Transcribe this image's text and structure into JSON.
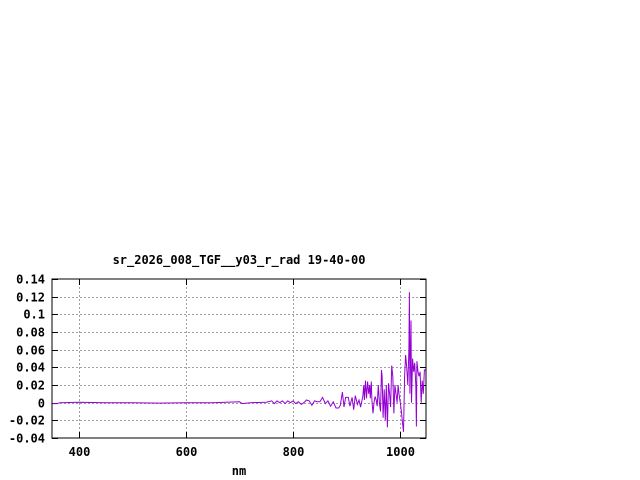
{
  "chart_data": {
    "type": "line",
    "title": "sr_2026_008_TGF__y03_r_rad 19-40-00",
    "xlabel": "nm",
    "ylabel": "",
    "xlim": [
      350,
      1048
    ],
    "ylim": [
      -0.04,
      0.14
    ],
    "xticks": [
      400,
      600,
      800,
      1000
    ],
    "xtick_labels": [
      "400",
      "600",
      "800",
      "1000"
    ],
    "yticks": [
      -0.04,
      -0.02,
      0,
      0.02,
      0.04,
      0.06,
      0.08,
      0.1,
      0.12,
      0.14
    ],
    "ytick_labels": [
      "-0.04",
      "-0.02",
      "0",
      "0.02",
      "0.04",
      "0.06",
      "0.08",
      "0.1",
      "0.12",
      "0.14"
    ],
    "grid": true,
    "line_color": "#9400d3",
    "series": [
      {
        "x": [
          350,
          360,
          365,
          400,
          450,
          500,
          550,
          600,
          650,
          700,
          705,
          720,
          750,
          760,
          765,
          770,
          775,
          780,
          785,
          790,
          795,
          800,
          805,
          810,
          815,
          820,
          825,
          830,
          835,
          840,
          845,
          850,
          855,
          860,
          865,
          870,
          875,
          880,
          885,
          888,
          892,
          895,
          898,
          903,
          906,
          910,
          913,
          916,
          920,
          923,
          926,
          930,
          932,
          933,
          935,
          937,
          939,
          941,
          943,
          944,
          946,
          947,
          949,
          951,
          953,
          955,
          957,
          959,
          961,
          963,
          965,
          966,
          968,
          970,
          972,
          974,
          976,
          978,
          980,
          982,
          984,
          986,
          988,
          990,
          992,
          994,
          996,
          998,
          1000,
          1002,
          1004,
          1006,
          1008,
          1010,
          1012,
          1014,
          1016,
          1017,
          1018,
          1020,
          1021,
          1023,
          1025,
          1027,
          1029,
          1030,
          1031,
          1033,
          1035,
          1037,
          1039,
          1041,
          1043,
          1045,
          1048
        ],
        "y": [
          -0.001,
          -0.001,
          0,
          0.0005,
          0,
          0,
          -0.0005,
          0,
          0,
          0.001,
          -0.001,
          0,
          0.0005,
          0.002,
          -0.001,
          0.002,
          0,
          0.002,
          -0.001,
          0.002,
          0,
          0.002,
          -0.001,
          0.001,
          -0.002,
          0,
          0.003,
          0.002,
          -0.003,
          0.002,
          0.001,
          0.001,
          0.006,
          -0.001,
          0.002,
          -0.004,
          0.001,
          -0.006,
          -0.006,
          -0.003,
          0.012,
          -0.005,
          0.006,
          0.006,
          -0.004,
          0.006,
          -0.008,
          0.008,
          -0.002,
          0.003,
          -0.005,
          0.007,
          0.02,
          0.003,
          0.025,
          0.005,
          0.024,
          0.01,
          0.02,
          0.005,
          0.024,
          0.003,
          -0.012,
          0,
          0.007,
          0.003,
          -0.004,
          0.02,
          0,
          -0.01,
          0.037,
          0.03,
          -0.017,
          0.015,
          -0.02,
          0.02,
          -0.028,
          0.022,
          0.01,
          -0.005,
          0.042,
          0.03,
          -0.012,
          0.02,
          0.01,
          0,
          0.02,
          0.008,
          0,
          -0.01,
          -0.022,
          -0.033,
          0.03,
          0.054,
          0.04,
          0.02,
          0.06,
          0.125,
          0.01,
          0.093,
          0,
          0.05,
          0.035,
          0.045,
          0.02,
          -0.027,
          0.047,
          0.035,
          0.03,
          0.035,
          0,
          0.025,
          0.01,
          0.037,
          0.037
        ]
      }
    ]
  }
}
